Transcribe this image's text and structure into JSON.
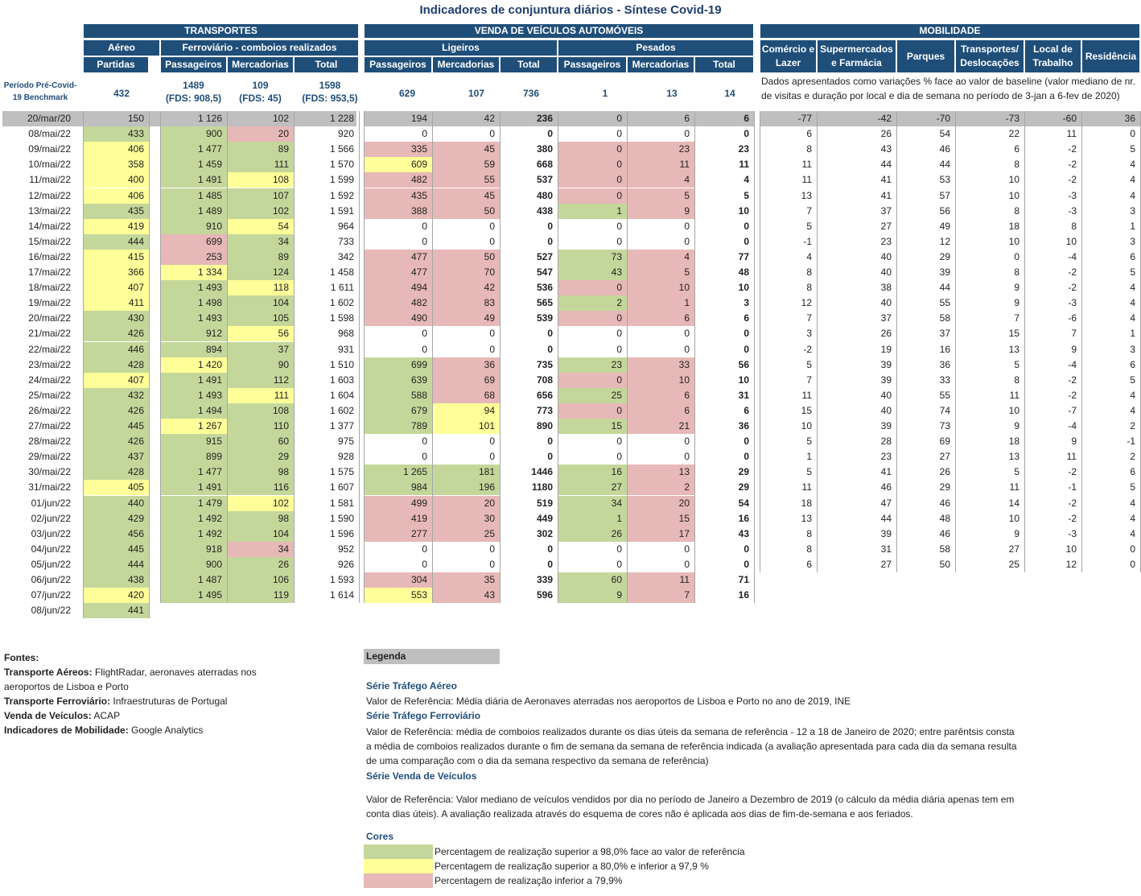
{
  "title": "Indicadores de conjuntura diários - Síntese Covid-19",
  "groups": {
    "transportes": "TRANSPORTES",
    "veiculos": "VENDA DE VEÍCULOS AUTOMÓVEIS",
    "mobilidade": "MOBILIDADE"
  },
  "subgroups": {
    "aereo": "Aéreo",
    "ferro": "Ferroviário - comboios realizados",
    "ligeiros": "Ligeiros",
    "pesados": "Pesados"
  },
  "columns": {
    "partidas": "Partidas",
    "passageiros": "Passageiros",
    "mercadorias": "Mercadorias",
    "total": "Total",
    "comercio": "Comércio e Lazer",
    "supermercados": "Supermercados e Farmácia",
    "parques": "Parques",
    "transportes_desl": "Transportes/ Deslocações",
    "trabalho": "Local de Trabalho",
    "residencia": "Residência"
  },
  "benchmark": {
    "label": "Período Pré-Covid-19 Benchmark",
    "values": [
      "432",
      "1489",
      "(FDS: 908,5)",
      "109",
      "(FDS: 45)",
      "1598",
      "(FDS: 953,5)",
      "629",
      "107",
      "736",
      "1",
      "13",
      "14"
    ],
    "mobility_note": "Dados apresentados como variações % face ao valor de baseline (valor mediano de nr. de visitas e duração por local e dia de semana no período de 3-jan a 6-fev de 2020)"
  },
  "reference_row": [
    "20/mar/20",
    "150",
    "1 126",
    "102",
    "1 228",
    "194",
    "42",
    "236",
    "0",
    "6",
    "6",
    "-77",
    "-42",
    "-70",
    "-73",
    "-60",
    "36"
  ],
  "rows": [
    {
      "d": "08/mai/22",
      "v": [
        "433",
        "900",
        "20",
        "920",
        "0",
        "0",
        "0",
        "0",
        "0",
        "0",
        "6",
        "26",
        "54",
        "22",
        "11",
        "0"
      ],
      "c": [
        "g",
        "g",
        "p",
        "",
        "",
        "",
        "",
        "",
        "",
        "",
        "",
        "",
        "",
        "",
        "",
        ""
      ]
    },
    {
      "d": "09/mai/22",
      "v": [
        "406",
        "1 477",
        "89",
        "1 566",
        "335",
        "45",
        "380",
        "0",
        "23",
        "23",
        "8",
        "43",
        "46",
        "6",
        "-2",
        "5"
      ],
      "c": [
        "y",
        "g",
        "g",
        "",
        "p",
        "p",
        "",
        "p",
        "p",
        "",
        "",
        "",
        "",
        "",
        "",
        ""
      ]
    },
    {
      "d": "10/mai/22",
      "v": [
        "358",
        "1 459",
        "111",
        "1 570",
        "609",
        "59",
        "668",
        "0",
        "11",
        "11",
        "11",
        "44",
        "44",
        "8",
        "-2",
        "4"
      ],
      "c": [
        "y",
        "g",
        "g",
        "",
        "y",
        "p",
        "",
        "p",
        "p",
        "",
        "",
        "",
        "",
        "",
        "",
        ""
      ]
    },
    {
      "d": "11/mai/22",
      "v": [
        "400",
        "1 491",
        "108",
        "1 599",
        "482",
        "55",
        "537",
        "0",
        "4",
        "4",
        "11",
        "41",
        "53",
        "10",
        "-2",
        "4"
      ],
      "c": [
        "y",
        "g",
        "y",
        "",
        "p",
        "p",
        "",
        "p",
        "p",
        "",
        "",
        "",
        "",
        "",
        "",
        ""
      ]
    },
    {
      "d": "12/mai/22",
      "v": [
        "406",
        "1 485",
        "107",
        "1 592",
        "435",
        "45",
        "480",
        "0",
        "5",
        "5",
        "13",
        "41",
        "57",
        "10",
        "-3",
        "4"
      ],
      "c": [
        "y",
        "g",
        "g",
        "",
        "p",
        "p",
        "",
        "p",
        "p",
        "",
        "",
        "",
        "",
        "",
        "",
        ""
      ]
    },
    {
      "d": "13/mai/22",
      "v": [
        "435",
        "1 489",
        "102",
        "1 591",
        "388",
        "50",
        "438",
        "1",
        "9",
        "10",
        "7",
        "37",
        "56",
        "8",
        "-3",
        "3"
      ],
      "c": [
        "g",
        "g",
        "g",
        "",
        "p",
        "p",
        "",
        "g",
        "p",
        "",
        "",
        "",
        "",
        "",
        "",
        ""
      ]
    },
    {
      "d": "14/mai/22",
      "v": [
        "419",
        "910",
        "54",
        "964",
        "0",
        "0",
        "0",
        "0",
        "0",
        "0",
        "5",
        "27",
        "49",
        "18",
        "8",
        "1"
      ],
      "c": [
        "y",
        "g",
        "y",
        "",
        "",
        "",
        "",
        "",
        "",
        "",
        "",
        "",
        "",
        "",
        "",
        ""
      ]
    },
    {
      "d": "15/mai/22",
      "v": [
        "444",
        "699",
        "34",
        "733",
        "0",
        "0",
        "0",
        "0",
        "0",
        "0",
        "-1",
        "23",
        "12",
        "10",
        "10",
        "3"
      ],
      "c": [
        "g",
        "p",
        "g",
        "",
        "",
        "",
        "",
        "",
        "",
        "",
        "",
        "",
        "",
        "",
        "",
        ""
      ]
    },
    {
      "d": "16/mai/22",
      "v": [
        "415",
        "253",
        "89",
        "342",
        "477",
        "50",
        "527",
        "73",
        "4",
        "77",
        "4",
        "40",
        "29",
        "0",
        "-4",
        "6"
      ],
      "c": [
        "y",
        "p",
        "g",
        "",
        "p",
        "p",
        "",
        "g",
        "p",
        "",
        "",
        "",
        "",
        "",
        "",
        ""
      ]
    },
    {
      "d": "17/mai/22",
      "v": [
        "366",
        "1 334",
        "124",
        "1 458",
        "477",
        "70",
        "547",
        "43",
        "5",
        "48",
        "8",
        "40",
        "39",
        "8",
        "-2",
        "5"
      ],
      "c": [
        "y",
        "y",
        "g",
        "",
        "p",
        "p",
        "",
        "g",
        "p",
        "",
        "",
        "",
        "",
        "",
        "",
        ""
      ]
    },
    {
      "d": "18/mai/22",
      "v": [
        "407",
        "1 493",
        "118",
        "1 611",
        "494",
        "42",
        "536",
        "0",
        "10",
        "10",
        "8",
        "38",
        "44",
        "9",
        "-2",
        "4"
      ],
      "c": [
        "y",
        "g",
        "y",
        "",
        "p",
        "p",
        "",
        "p",
        "p",
        "",
        "",
        "",
        "",
        "",
        "",
        ""
      ]
    },
    {
      "d": "19/mai/22",
      "v": [
        "411",
        "1 498",
        "104",
        "1 602",
        "482",
        "83",
        "565",
        "2",
        "1",
        "3",
        "12",
        "40",
        "55",
        "9",
        "-3",
        "4"
      ],
      "c": [
        "y",
        "g",
        "g",
        "",
        "p",
        "p",
        "",
        "g",
        "p",
        "",
        "",
        "",
        "",
        "",
        "",
        ""
      ]
    },
    {
      "d": "20/mai/22",
      "v": [
        "430",
        "1 493",
        "105",
        "1 598",
        "490",
        "49",
        "539",
        "0",
        "6",
        "6",
        "7",
        "37",
        "58",
        "7",
        "-6",
        "4"
      ],
      "c": [
        "g",
        "g",
        "g",
        "",
        "p",
        "p",
        "",
        "p",
        "p",
        "",
        "",
        "",
        "",
        "",
        "",
        ""
      ]
    },
    {
      "d": "21/mai/22",
      "v": [
        "426",
        "912",
        "56",
        "968",
        "0",
        "0",
        "0",
        "0",
        "0",
        "0",
        "3",
        "26",
        "37",
        "15",
        "7",
        "1"
      ],
      "c": [
        "g",
        "g",
        "y",
        "",
        "",
        "",
        "",
        "",
        "",
        "",
        "",
        "",
        "",
        "",
        "",
        ""
      ]
    },
    {
      "d": "22/mai/22",
      "v": [
        "446",
        "894",
        "37",
        "931",
        "0",
        "0",
        "0",
        "0",
        "0",
        "0",
        "-2",
        "19",
        "16",
        "13",
        "9",
        "3"
      ],
      "c": [
        "g",
        "g",
        "g",
        "",
        "",
        "",
        "",
        "",
        "",
        "",
        "",
        "",
        "",
        "",
        "",
        ""
      ]
    },
    {
      "d": "23/mai/22",
      "v": [
        "428",
        "1 420",
        "90",
        "1 510",
        "699",
        "36",
        "735",
        "23",
        "33",
        "56",
        "5",
        "39",
        "36",
        "5",
        "-4",
        "6"
      ],
      "c": [
        "g",
        "y",
        "g",
        "",
        "g",
        "p",
        "",
        "g",
        "p",
        "",
        "",
        "",
        "",
        "",
        "",
        ""
      ]
    },
    {
      "d": "24/mai/22",
      "v": [
        "407",
        "1 491",
        "112",
        "1 603",
        "639",
        "69",
        "708",
        "0",
        "10",
        "10",
        "7",
        "39",
        "33",
        "8",
        "-2",
        "5"
      ],
      "c": [
        "y",
        "g",
        "g",
        "",
        "g",
        "p",
        "",
        "p",
        "p",
        "",
        "",
        "",
        "",
        "",
        "",
        ""
      ]
    },
    {
      "d": "25/mai/22",
      "v": [
        "432",
        "1 493",
        "111",
        "1 604",
        "588",
        "68",
        "656",
        "25",
        "6",
        "31",
        "11",
        "40",
        "55",
        "11",
        "-2",
        "4"
      ],
      "c": [
        "g",
        "g",
        "y",
        "",
        "g",
        "p",
        "",
        "g",
        "p",
        "",
        "",
        "",
        "",
        "",
        "",
        ""
      ]
    },
    {
      "d": "26/mai/22",
      "v": [
        "426",
        "1 494",
        "108",
        "1 602",
        "679",
        "94",
        "773",
        "0",
        "6",
        "6",
        "15",
        "40",
        "74",
        "10",
        "-7",
        "4"
      ],
      "c": [
        "g",
        "g",
        "g",
        "",
        "g",
        "y",
        "",
        "p",
        "p",
        "",
        "",
        "",
        "",
        "",
        "",
        ""
      ]
    },
    {
      "d": "27/mai/22",
      "v": [
        "445",
        "1 267",
        "110",
        "1 377",
        "789",
        "101",
        "890",
        "15",
        "21",
        "36",
        "10",
        "39",
        "73",
        "9",
        "-4",
        "2"
      ],
      "c": [
        "g",
        "y",
        "g",
        "",
        "g",
        "y",
        "",
        "g",
        "p",
        "",
        "",
        "",
        "",
        "",
        "",
        ""
      ]
    },
    {
      "d": "28/mai/22",
      "v": [
        "426",
        "915",
        "60",
        "975",
        "0",
        "0",
        "0",
        "0",
        "0",
        "0",
        "5",
        "28",
        "69",
        "18",
        "9",
        "-1"
      ],
      "c": [
        "g",
        "g",
        "g",
        "",
        "",
        "",
        "",
        "",
        "",
        "",
        "",
        "",
        "",
        "",
        "",
        ""
      ]
    },
    {
      "d": "29/mai/22",
      "v": [
        "437",
        "899",
        "29",
        "928",
        "0",
        "0",
        "0",
        "0",
        "0",
        "0",
        "1",
        "23",
        "27",
        "13",
        "11",
        "2"
      ],
      "c": [
        "g",
        "g",
        "g",
        "",
        "",
        "",
        "",
        "",
        "",
        "",
        "",
        "",
        "",
        "",
        "",
        ""
      ]
    },
    {
      "d": "30/mai/22",
      "v": [
        "428",
        "1 477",
        "98",
        "1 575",
        "1 265",
        "181",
        "1446",
        "16",
        "13",
        "29",
        "5",
        "41",
        "26",
        "5",
        "-2",
        "6"
      ],
      "c": [
        "g",
        "g",
        "g",
        "",
        "g",
        "g",
        "",
        "g",
        "p",
        "",
        "",
        "",
        "",
        "",
        "",
        ""
      ]
    },
    {
      "d": "31/mai/22",
      "v": [
        "405",
        "1 491",
        "116",
        "1 607",
        "984",
        "196",
        "1180",
        "27",
        "2",
        "29",
        "11",
        "46",
        "29",
        "11",
        "-1",
        "5"
      ],
      "c": [
        "y",
        "g",
        "g",
        "",
        "g",
        "g",
        "",
        "g",
        "p",
        "",
        "",
        "",
        "",
        "",
        "",
        ""
      ]
    },
    {
      "d": "01/jun/22",
      "v": [
        "440",
        "1 479",
        "102",
        "1 581",
        "499",
        "20",
        "519",
        "34",
        "20",
        "54",
        "18",
        "47",
        "46",
        "14",
        "-2",
        "4"
      ],
      "c": [
        "g",
        "g",
        "y",
        "",
        "p",
        "p",
        "",
        "g",
        "p",
        "",
        "",
        "",
        "",
        "",
        "",
        ""
      ]
    },
    {
      "d": "02/jun/22",
      "v": [
        "429",
        "1 492",
        "98",
        "1 590",
        "419",
        "30",
        "449",
        "1",
        "15",
        "16",
        "13",
        "44",
        "48",
        "10",
        "-2",
        "4"
      ],
      "c": [
        "g",
        "g",
        "g",
        "",
        "p",
        "p",
        "",
        "g",
        "p",
        "",
        "",
        "",
        "",
        "",
        "",
        ""
      ]
    },
    {
      "d": "03/jun/22",
      "v": [
        "456",
        "1 492",
        "104",
        "1 596",
        "277",
        "25",
        "302",
        "26",
        "17",
        "43",
        "8",
        "39",
        "46",
        "9",
        "-3",
        "4"
      ],
      "c": [
        "g",
        "g",
        "g",
        "",
        "p",
        "p",
        "",
        "g",
        "p",
        "",
        "",
        "",
        "",
        "",
        "",
        ""
      ]
    },
    {
      "d": "04/jun/22",
      "v": [
        "445",
        "918",
        "34",
        "952",
        "0",
        "0",
        "0",
        "0",
        "0",
        "0",
        "8",
        "31",
        "58",
        "27",
        "10",
        "0"
      ],
      "c": [
        "g",
        "g",
        "p",
        "",
        "",
        "",
        "",
        "",
        "",
        "",
        "",
        "",
        "",
        "",
        "",
        ""
      ]
    },
    {
      "d": "05/jun/22",
      "v": [
        "444",
        "900",
        "26",
        "926",
        "0",
        "0",
        "0",
        "0",
        "0",
        "0",
        "6",
        "27",
        "50",
        "25",
        "12",
        "0"
      ],
      "c": [
        "g",
        "g",
        "g",
        "",
        "",
        "",
        "",
        "",
        "",
        "",
        "",
        "",
        "",
        "",
        "",
        ""
      ]
    },
    {
      "d": "06/jun/22",
      "v": [
        "438",
        "1 487",
        "106",
        "1 593",
        "304",
        "35",
        "339",
        "60",
        "11",
        "71",
        "",
        "",
        "",
        "",
        "",
        ""
      ],
      "c": [
        "g",
        "g",
        "g",
        "",
        "p",
        "p",
        "",
        "g",
        "p",
        "",
        "",
        "",
        "",
        "",
        "",
        ""
      ]
    },
    {
      "d": "07/jun/22",
      "v": [
        "420",
        "1 495",
        "119",
        "1 614",
        "553",
        "43",
        "596",
        "9",
        "7",
        "16",
        "",
        "",
        "",
        "",
        "",
        ""
      ],
      "c": [
        "y",
        "g",
        "g",
        "",
        "y",
        "p",
        "",
        "g",
        "p",
        "",
        "",
        "",
        "",
        "",
        "",
        ""
      ]
    },
    {
      "d": "08/jun/22",
      "v": [
        "441",
        "",
        "",
        "",
        "",
        "",
        "",
        "",
        "",
        "",
        "",
        "",
        "",
        "",
        "",
        ""
      ],
      "c": [
        "g",
        "",
        "",
        "",
        "",
        "",
        "",
        "",
        "",
        "",
        "",
        "",
        "",
        "",
        "",
        ""
      ]
    }
  ],
  "sources": {
    "heading": "Fontes:",
    "items": [
      {
        "label": "Transporte Aéreos:",
        "text": "FlightRadar, aeronaves aterradas nos aeroportos de Lisboa e Porto"
      },
      {
        "label": "Transporte Ferroviário:",
        "text": "Infraestruturas de Portugal"
      },
      {
        "label": "Venda de Veículos:",
        "text": "ACAP"
      },
      {
        "label": "Indicadores de Mobilidade:",
        "text": "Google Analytics"
      }
    ]
  },
  "legend": {
    "heading": "Legenda",
    "aereo_title": "Série Tráfego Aéreo",
    "aereo_text": "Valor de Referência: Média diária de Aeronaves aterradas nos aeroportos de Lisboa e Porto no ano de 2019, INE",
    "ferro_title": "Série Tráfego Ferroviário",
    "ferro_text": "Valor de Referência: média de comboios realizados durante os dias úteis da semana de referência - 12 a 18 de Janeiro de 2020; entre parêntsis consta a média de comboios realizados durante o fim de semana da semana de referência indicada (a avaliação apresentada para cada dia da semana resulta de uma comparação com o dia da semana respectivo da semana de referência)",
    "veic_title": "Série Venda de Veículos",
    "veic_text": "Valor de Referência: Valor mediano de veículos vendidos por dia no período de Janeiro a Dezembro de 2019 (o cálculo da média diária apenas tem em conta dias úteis). A avaliação realizada através do esquema de cores não é aplicada aos dias de fim-de-semana e aos feriados.",
    "cores_title": "Cores",
    "green": "Percentagem de realização superior a 98,0% face ao valor de referência",
    "yellow": "Percentagem de realização superior a 80,0% e inferior a 97,9 %",
    "pink": "Percentagem de realização inferior a 79,9%",
    "colors": {
      "green": "#c4d79b",
      "yellow": "#ffff99",
      "pink": "#e6b8b7",
      "header": "#1f4e79"
    }
  }
}
